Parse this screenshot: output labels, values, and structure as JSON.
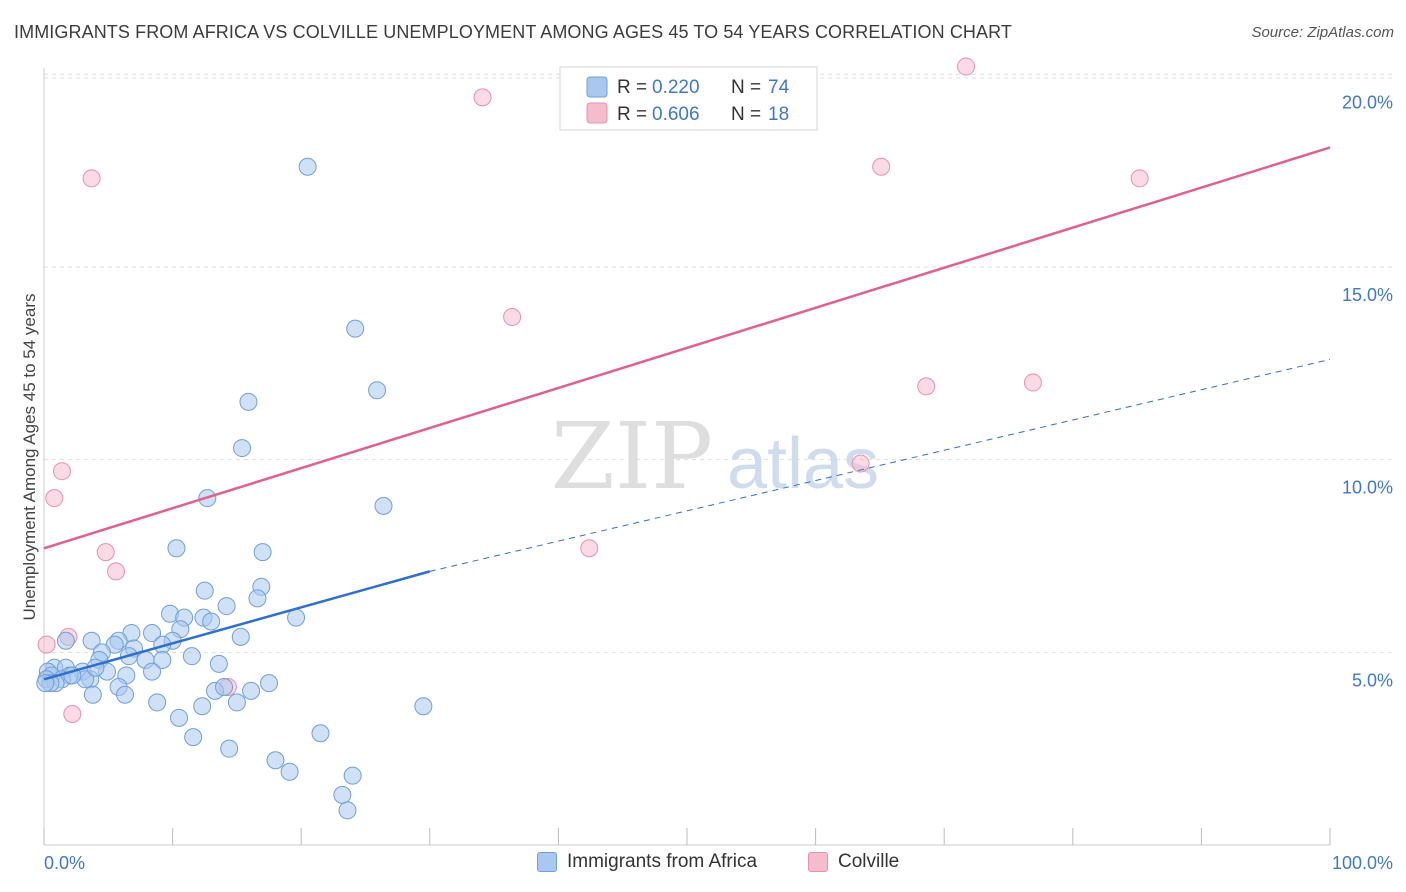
{
  "title": "IMMIGRANTS FROM AFRICA VS COLVILLE UNEMPLOYMENT AMONG AGES 45 TO 54 YEARS CORRELATION CHART",
  "source": "Source: ZipAtlas.com",
  "watermark": {
    "zip": "ZIP",
    "atlas": "atlas"
  },
  "colors": {
    "blue_fill": "#a9c8ef",
    "blue_stroke": "#6f9fd8",
    "blue_line": "#2e6fd0",
    "pink_fill": "#f5bccd",
    "pink_stroke": "#e791ac",
    "pink_line": "#e0628a",
    "axis_label": "#3f78c9",
    "grid": "#dddddd"
  },
  "legend": {
    "entries": [
      {
        "r_label": "R =",
        "r_value": "0.220",
        "n_label": "N =",
        "n_value": "74"
      },
      {
        "r_label": "R =",
        "r_value": "0.606",
        "n_label": "N =",
        "n_value": "18"
      }
    ]
  },
  "chart_data": {
    "type": "scatter",
    "xlabel": "",
    "ylabel": "Unemployment Among Ages 45 to 54 years",
    "xlim": [
      0,
      100
    ],
    "ylim": [
      0,
      20.5
    ],
    "x_tick_labels": [
      "0.0%",
      "100.0%"
    ],
    "y_ticks": [
      5,
      10,
      15,
      20
    ],
    "y_tick_labels": [
      "5.0%",
      "10.0%",
      "15.0%",
      "20.0%"
    ],
    "grid": true,
    "series": [
      {
        "name": "Immigrants from Africa",
        "color": "blue",
        "r": 0.22,
        "n": 74,
        "points": [
          [
            20.5,
            17.6
          ],
          [
            24.2,
            13.4
          ],
          [
            25.9,
            11.8
          ],
          [
            15.9,
            11.5
          ],
          [
            15.4,
            10.3
          ],
          [
            12.7,
            9.0
          ],
          [
            26.4,
            8.8
          ],
          [
            10.3,
            7.7
          ],
          [
            17.0,
            7.6
          ],
          [
            16.9,
            6.7
          ],
          [
            12.5,
            6.6
          ],
          [
            16.6,
            6.4
          ],
          [
            14.2,
            6.2
          ],
          [
            9.8,
            6.0
          ],
          [
            10.9,
            5.9
          ],
          [
            12.4,
            5.9
          ],
          [
            19.6,
            5.9
          ],
          [
            13.0,
            5.8
          ],
          [
            10.6,
            5.6
          ],
          [
            8.4,
            5.5
          ],
          [
            6.8,
            5.5
          ],
          [
            15.3,
            5.4
          ],
          [
            3.7,
            5.3
          ],
          [
            5.8,
            5.3
          ],
          [
            10.0,
            5.3
          ],
          [
            1.7,
            5.3
          ],
          [
            9.2,
            5.2
          ],
          [
            7.0,
            5.1
          ],
          [
            5.5,
            5.2
          ],
          [
            4.5,
            5.0
          ],
          [
            7.9,
            4.8
          ],
          [
            4.3,
            4.8
          ],
          [
            9.2,
            4.8
          ],
          [
            11.5,
            4.9
          ],
          [
            13.6,
            4.7
          ],
          [
            0.8,
            4.6
          ],
          [
            0.3,
            4.5
          ],
          [
            1.7,
            4.6
          ],
          [
            3.0,
            4.5
          ],
          [
            4.9,
            4.5
          ],
          [
            8.4,
            4.5
          ],
          [
            6.4,
            4.4
          ],
          [
            0.6,
            4.4
          ],
          [
            2.0,
            4.4
          ],
          [
            0.2,
            4.3
          ],
          [
            1.4,
            4.3
          ],
          [
            3.6,
            4.3
          ],
          [
            3.2,
            4.3
          ],
          [
            0.9,
            4.2
          ],
          [
            5.8,
            4.1
          ],
          [
            17.5,
            4.2
          ],
          [
            0.5,
            4.2
          ],
          [
            13.3,
            4.0
          ],
          [
            16.1,
            4.0
          ],
          [
            3.8,
            3.9
          ],
          [
            6.3,
            3.9
          ],
          [
            14.0,
            4.1
          ],
          [
            8.8,
            3.7
          ],
          [
            12.3,
            3.6
          ],
          [
            15.0,
            3.7
          ],
          [
            29.5,
            3.6
          ],
          [
            10.5,
            3.3
          ],
          [
            0.1,
            4.2
          ],
          [
            21.5,
            2.9
          ],
          [
            11.6,
            2.8
          ],
          [
            14.4,
            2.5
          ],
          [
            18.0,
            2.2
          ],
          [
            19.1,
            1.9
          ],
          [
            24.0,
            1.8
          ],
          [
            23.2,
            1.3
          ],
          [
            23.6,
            0.9
          ],
          [
            2.2,
            4.4
          ],
          [
            4.0,
            4.6
          ],
          [
            6.6,
            4.9
          ]
        ],
        "trend_solid": {
          "x": [
            0,
            30
          ],
          "y": [
            4.3,
            7.1
          ]
        },
        "trend_dashed": {
          "x": [
            30,
            100
          ],
          "y": [
            7.1,
            12.6
          ]
        }
      },
      {
        "name": "Colville",
        "color": "pink",
        "r": 0.606,
        "n": 18,
        "points": [
          [
            71.7,
            20.2
          ],
          [
            34.1,
            19.4
          ],
          [
            3.7,
            17.3
          ],
          [
            65.1,
            17.6
          ],
          [
            85.2,
            17.3
          ],
          [
            36.4,
            13.7
          ],
          [
            68.6,
            11.9
          ],
          [
            76.9,
            12.0
          ],
          [
            63.5,
            9.9
          ],
          [
            1.4,
            9.7
          ],
          [
            0.8,
            9.0
          ],
          [
            42.4,
            7.7
          ],
          [
            4.8,
            7.6
          ],
          [
            5.6,
            7.1
          ],
          [
            1.9,
            5.4
          ],
          [
            0.2,
            5.2
          ],
          [
            14.3,
            4.1
          ],
          [
            2.2,
            3.4
          ]
        ],
        "trend": {
          "x": [
            0,
            100
          ],
          "y": [
            7.7,
            18.1
          ]
        }
      }
    ]
  }
}
